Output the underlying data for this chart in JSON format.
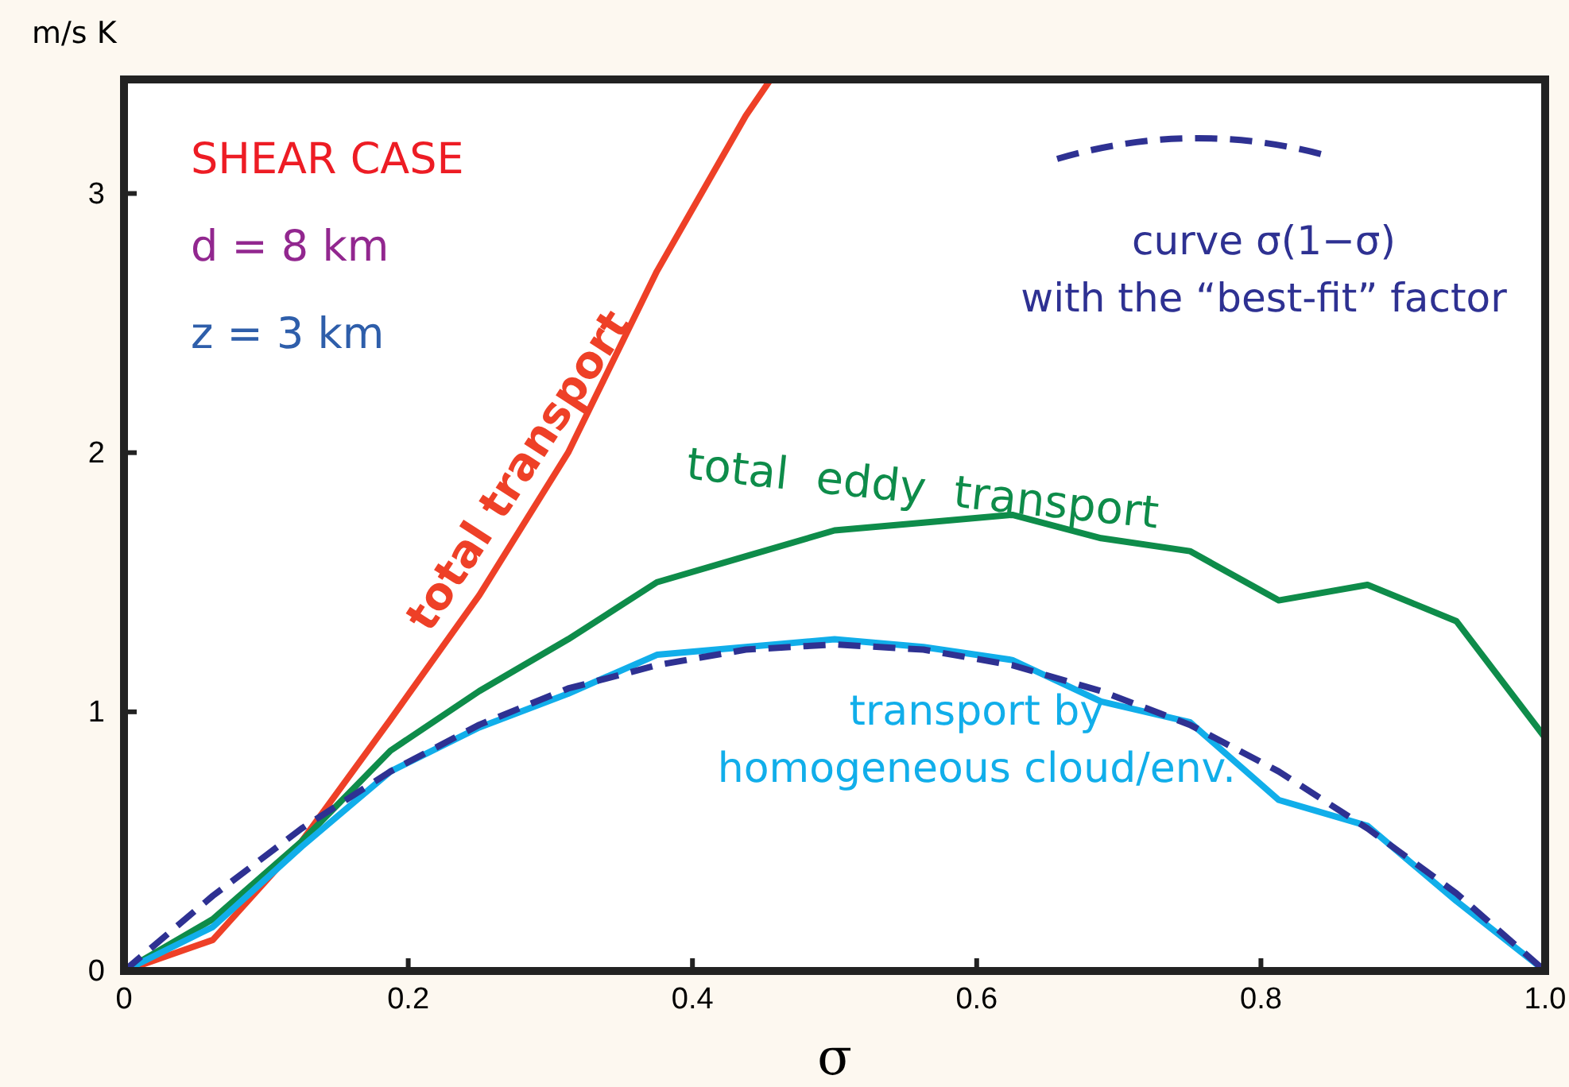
{
  "chart_data": {
    "type": "line",
    "ylabel": "m/s K",
    "xlabel": "σ",
    "annotations": [
      "SHEAR CASE",
      "d = 8 km",
      "z = 3 km"
    ],
    "xlim": [
      0,
      1
    ],
    "xticks": [
      0,
      0.2,
      0.4,
      0.6,
      0.8,
      {
        "value": 1,
        "label": "1.0"
      }
    ],
    "ylim": [
      0,
      3.44
    ],
    "yticks": [
      0,
      1,
      2,
      3
    ],
    "grid": false,
    "legend": "top right",
    "marker": "none",
    "series": [
      {
        "name": "total transport",
        "color": "#ee4027",
        "x": [
          0,
          0.0625,
          0.125,
          0.1875,
          0.25,
          0.3125,
          0.375,
          0.4375,
          0.455
        ],
        "values": [
          0,
          0.12,
          0.5,
          0.97,
          1.45,
          2.0,
          2.7,
          3.3,
          3.44
        ]
      },
      {
        "name": "total  eddy  transport",
        "color": "#0e8c4a",
        "x": [
          0,
          0.0625,
          0.125,
          0.1875,
          0.25,
          0.3125,
          0.375,
          0.4375,
          0.5,
          0.5625,
          0.625,
          0.6875,
          0.75,
          0.8125,
          0.875,
          0.9375,
          1
        ],
        "values": [
          0,
          0.2,
          0.5,
          0.85,
          1.08,
          1.28,
          1.5,
          1.6,
          1.7,
          1.73,
          1.76,
          1.67,
          1.62,
          1.43,
          1.49,
          1.35,
          0.9
        ]
      },
      {
        "name": "transport by\nhomogeneous cloud/env.",
        "color": "#11aeea",
        "x": [
          0,
          0.0625,
          0.125,
          0.1875,
          0.25,
          0.3125,
          0.375,
          0.4375,
          0.5,
          0.5625,
          0.625,
          0.6875,
          0.75,
          0.8125,
          0.875,
          0.9375,
          1
        ],
        "values": [
          0,
          0.17,
          0.48,
          0.77,
          0.94,
          1.07,
          1.22,
          1.25,
          1.28,
          1.25,
          1.2,
          1.04,
          0.96,
          0.66,
          0.56,
          0.27,
          0
        ]
      },
      {
        "name": "curve σ(1−σ)\nwith the “best-fit” factor",
        "color": "#2e3192",
        "line_style": "dashed",
        "x": [
          0,
          0.0625,
          0.125,
          0.1875,
          0.25,
          0.3125,
          0.375,
          0.4375,
          0.5,
          0.5625,
          0.625,
          0.6875,
          0.75,
          0.8125,
          0.875,
          0.9375,
          1
        ],
        "values": [
          0,
          0.29,
          0.55,
          0.77,
          0.95,
          1.09,
          1.18,
          1.24,
          1.26,
          1.24,
          1.18,
          1.08,
          0.95,
          0.77,
          0.55,
          0.3,
          0
        ]
      }
    ]
  }
}
